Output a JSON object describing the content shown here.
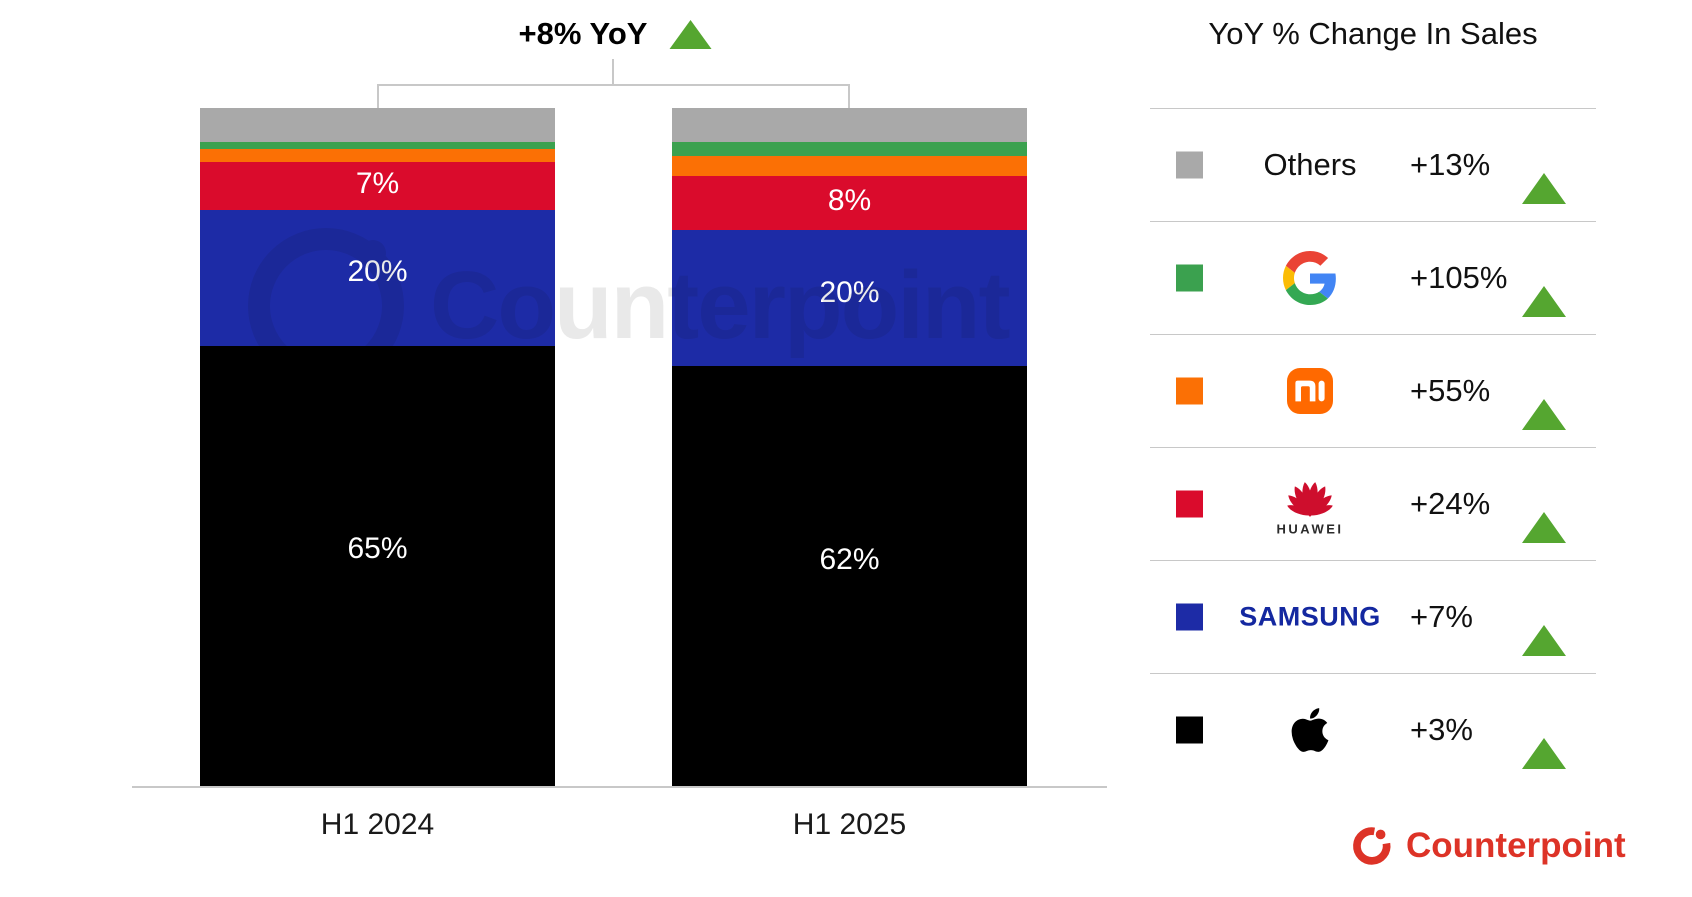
{
  "annotation": {
    "label": "+8% YoY"
  },
  "watermark": {
    "text": "Counterpoint"
  },
  "chart_data": {
    "type": "bar",
    "stacked": true,
    "title": "+8% YoY",
    "unit": "percent share of sales",
    "categories": [
      "H1 2024",
      "H1 2025"
    ],
    "series": [
      {
        "name": "Apple",
        "color": "#000000",
        "values": [
          65,
          62
        ],
        "labels": [
          "65%",
          "62%"
        ],
        "yoy_change": "+3%"
      },
      {
        "name": "Samsung",
        "color": "#1d2ba6",
        "values": [
          20,
          20
        ],
        "labels": [
          "20%",
          "20%"
        ],
        "yoy_change": "+7%"
      },
      {
        "name": "Huawei",
        "color": "#da0b2c",
        "values": [
          7,
          8
        ],
        "labels": [
          "7%",
          "8%"
        ],
        "yoy_change": "+24%"
      },
      {
        "name": "Xiaomi",
        "color": "#fb7005",
        "values": [
          2,
          3
        ],
        "labels": [
          "",
          ""
        ],
        "yoy_change": "+55%"
      },
      {
        "name": "Google",
        "color": "#3ba14f",
        "values": [
          1,
          2
        ],
        "labels": [
          "",
          ""
        ],
        "yoy_change": "+105%"
      },
      {
        "name": "Others",
        "color": "#a9a9a9",
        "values": [
          5,
          5
        ],
        "labels": [
          "",
          ""
        ],
        "yoy_change": "+13%"
      }
    ],
    "ylim": [
      0,
      100
    ],
    "grid": false,
    "legend_position": "right"
  },
  "legend": {
    "title": "YoY % Change In Sales",
    "rows": [
      {
        "brand": "Others",
        "label": "Others",
        "swatch": "#a9a9a9",
        "change": "+13%"
      },
      {
        "brand": "Google",
        "swatch": "#3ba14f",
        "change": "+105%"
      },
      {
        "brand": "Xiaomi",
        "swatch": "#fb7005",
        "change": "+55%"
      },
      {
        "brand": "Huawei",
        "swatch": "#da0b2c",
        "change": "+24%",
        "logo_caption": "HUAWEI"
      },
      {
        "brand": "Samsung",
        "label": "SAMSUNG",
        "swatch": "#1d2ba6",
        "change": "+7%"
      },
      {
        "brand": "Apple",
        "swatch": "#000000",
        "change": "+3%"
      }
    ]
  },
  "footer": {
    "brand": "Counterpoint"
  },
  "colors": {
    "triangle-green": "#55a630",
    "axis-gray": "#c8c8c8",
    "samsung-wordmark-blue": "#1428a0",
    "counterpoint-red": "#dd3327",
    "google-blue": "#4285f4",
    "google-red": "#ea4335",
    "google-yellow": "#fbbc05",
    "google-green": "#34a853",
    "xiaomi-orange": "#ff6900",
    "huawei-red": "#ce0e2d",
    "apple-black": "#000000",
    "watermark-gray": "#e9e9e9"
  }
}
